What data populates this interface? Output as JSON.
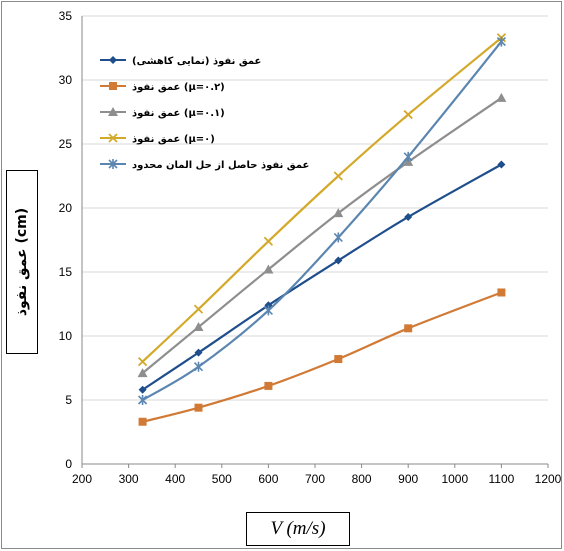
{
  "chart_data": {
    "type": "line",
    "title": "",
    "xlabel": "V (m/s)",
    "ylabel": "عمق نفوذ (cm)",
    "xlim": [
      200,
      1200
    ],
    "ylim": [
      0,
      35
    ],
    "x_ticks": [
      200,
      300,
      400,
      500,
      600,
      700,
      800,
      900,
      1000,
      1100,
      1200
    ],
    "y_ticks": [
      0,
      5,
      10,
      15,
      20,
      25,
      30,
      35
    ],
    "grid": true,
    "legend_position": "top-left",
    "series": [
      {
        "name": "عمق نفوذ (نمایی کاهشی)",
        "color": "#1f4e8c",
        "marker": "diamond",
        "x": [
          330,
          450,
          600,
          750,
          900,
          1100
        ],
        "y": [
          5.8,
          8.7,
          12.4,
          15.9,
          19.3,
          23.4
        ]
      },
      {
        "name": "عمق نفوذ (μ=۰.۲)",
        "color": "#d07a36",
        "marker": "square",
        "x": [
          330,
          450,
          600,
          750,
          900,
          1100
        ],
        "y": [
          3.3,
          4.4,
          6.1,
          8.2,
          10.6,
          13.4
        ]
      },
      {
        "name": "عمق نفوذ (μ=۰.۱)",
        "color": "#8e8e8e",
        "marker": "triangle",
        "x": [
          330,
          450,
          600,
          750,
          900,
          1100
        ],
        "y": [
          7.1,
          10.7,
          15.2,
          19.6,
          23.6,
          28.6
        ]
      },
      {
        "name": "عمق نفوذ (μ=۰)",
        "color": "#d4a92a",
        "marker": "x",
        "x": [
          330,
          450,
          600,
          750,
          900,
          1100
        ],
        "y": [
          8.0,
          12.1,
          17.4,
          22.5,
          27.3,
          33.3
        ]
      },
      {
        "name": "عمق نفوذ حاصل از حل المان محدود",
        "color": "#5b86b0",
        "marker": "star",
        "x": [
          330,
          450,
          600,
          750,
          900,
          1100
        ],
        "y": [
          5.0,
          7.6,
          12.0,
          17.7,
          24.0,
          33.0
        ]
      }
    ]
  }
}
